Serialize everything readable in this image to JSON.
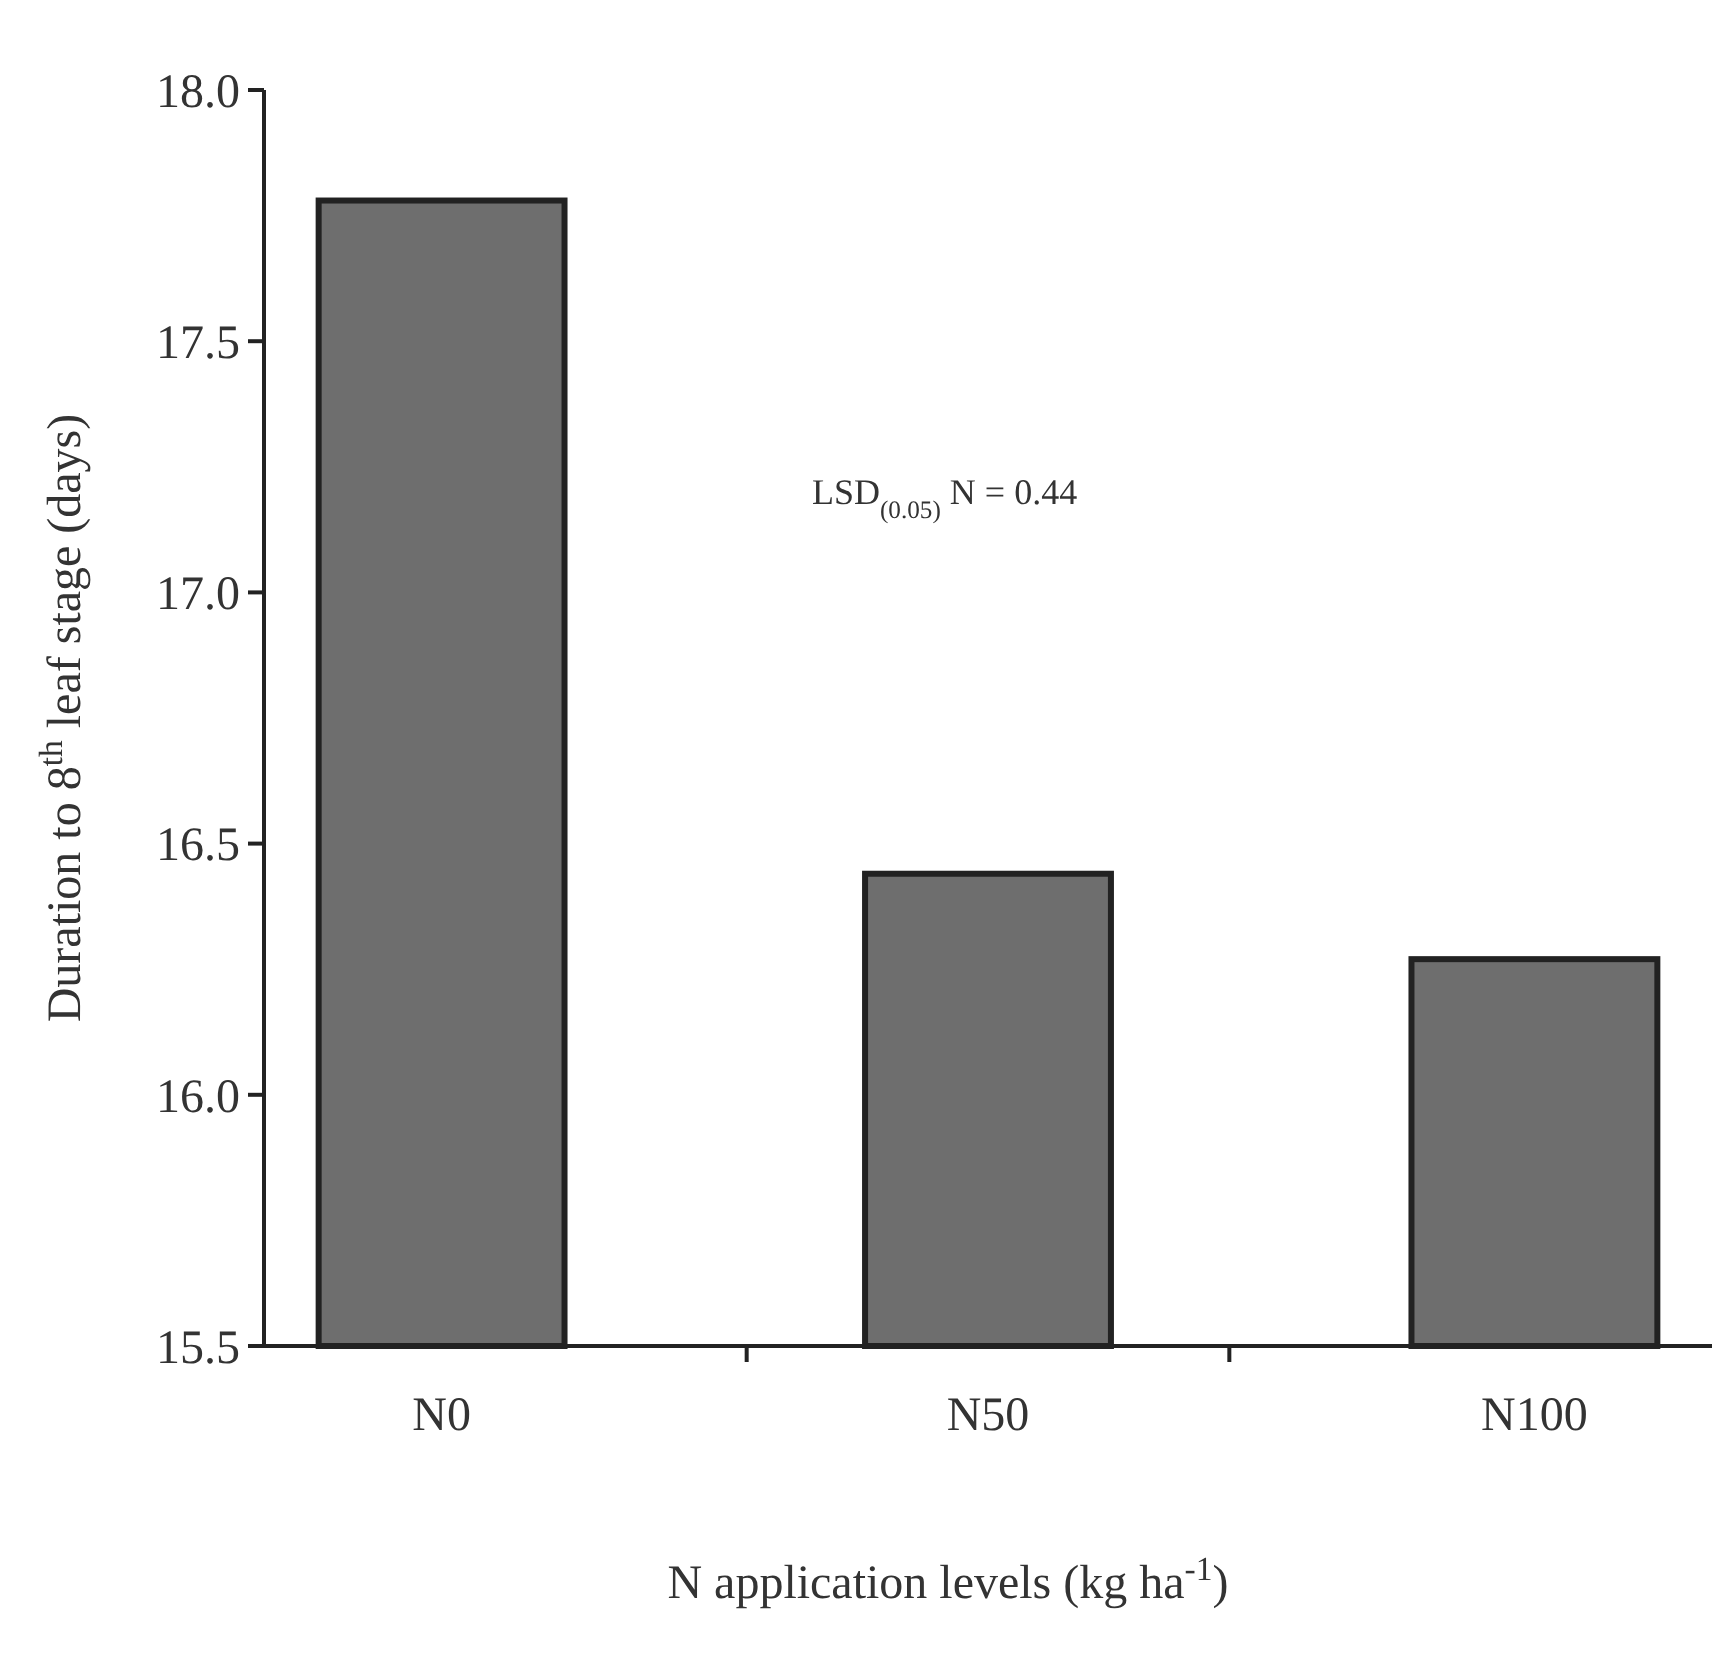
{
  "chart_data": {
    "type": "bar",
    "xlabel": "N application levels (kg ha$^{-1}$)",
    "ylabel": "Duration to 8$^{th}$ leaf stage (days)",
    "categories": [
      "N0",
      "N50",
      "N100"
    ],
    "values": [
      17.78,
      16.44,
      16.27
    ],
    "color": "#6e6e6e",
    "ylim": [
      15.5,
      18.0
    ],
    "yticks": [
      {
        "value": 15.5,
        "label": "15.5"
      },
      {
        "value": 16.0,
        "label": "16.0"
      },
      {
        "value": 16.5,
        "label": "16.5"
      },
      {
        "value": 17.0,
        "label": "17.0"
      },
      {
        "value": 17.5,
        "label": "17.5"
      },
      {
        "value": 18.0,
        "label": "18.0"
      }
    ],
    "annotations": [
      "LSD$_{(0.05)}$ N = 0.44"
    ]
  }
}
